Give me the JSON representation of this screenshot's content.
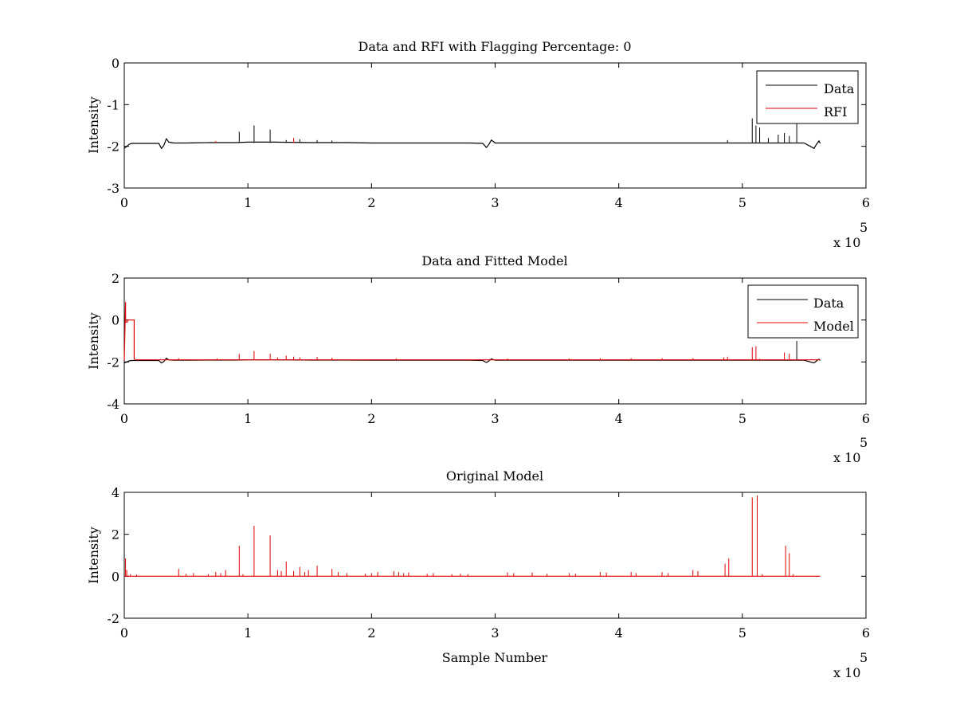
{
  "chart_data": [
    {
      "type": "line",
      "title": "Data and RFI with Flagging Percentage: 0",
      "xlabel": "",
      "ylabel": "Intensity",
      "xlim": [
        0,
        6
      ],
      "ylim": [
        -3,
        0
      ],
      "x_multiplier": "x 10",
      "x_multiplier_exp": "5",
      "xticks": [
        "0",
        "1",
        "2",
        "3",
        "4",
        "5",
        "6"
      ],
      "yticks": [
        "-3",
        "-2",
        "-1",
        "0"
      ],
      "legend_position": "top-right",
      "series": [
        {
          "name": "Data",
          "color": "#000000",
          "kind": "line",
          "x": [
            0,
            0.02,
            0.04,
            0.06,
            0.1,
            0.2,
            0.28,
            0.3,
            0.32,
            0.34,
            0.36,
            0.4,
            0.5,
            0.7,
            0.9,
            1.0,
            1.2,
            1.5,
            1.8,
            2.0,
            2.4,
            2.8,
            2.9,
            2.93,
            2.95,
            2.97,
            3.0,
            3.2,
            3.5,
            4.0,
            4.5,
            4.9,
            5.1,
            5.3,
            5.5,
            5.58,
            5.6,
            5.62,
            5.63
          ],
          "y": [
            -2.05,
            -2.0,
            -1.95,
            -1.93,
            -1.93,
            -1.93,
            -1.93,
            -2.05,
            -1.98,
            -1.82,
            -1.9,
            -1.92,
            -1.92,
            -1.91,
            -1.91,
            -1.9,
            -1.9,
            -1.91,
            -1.91,
            -1.92,
            -1.92,
            -1.92,
            -1.93,
            -2.03,
            -1.95,
            -1.85,
            -1.92,
            -1.92,
            -1.92,
            -1.92,
            -1.92,
            -1.92,
            -1.92,
            -1.92,
            -1.92,
            -2.05,
            -1.95,
            -1.87,
            -1.93
          ]
        },
        {
          "name": "Data spikes",
          "color": "#000000",
          "kind": "spikes",
          "baseline": -1.92,
          "x": [
            0.93,
            1.05,
            1.18,
            1.31,
            1.42,
            1.56,
            1.68,
            4.88,
            5.08,
            5.11,
            5.14,
            5.21,
            5.29,
            5.34,
            5.38,
            5.44
          ],
          "y": [
            -1.65,
            -1.5,
            -1.6,
            -1.85,
            -1.83,
            -1.85,
            -1.86,
            -1.85,
            -1.33,
            -1.5,
            -1.55,
            -1.8,
            -1.72,
            -1.68,
            -1.75,
            -1.4
          ]
        },
        {
          "name": "RFI",
          "color": "#e00000",
          "kind": "spikes",
          "baseline": -1.92,
          "x": [
            0.74,
            1.37
          ],
          "y": [
            -1.87,
            -1.8
          ]
        }
      ],
      "legend": [
        {
          "label": "Data",
          "color": "#000000"
        },
        {
          "label": "RFI",
          "color": "#e00000"
        }
      ]
    },
    {
      "type": "line",
      "title": "Data and Fitted Model",
      "xlabel": "",
      "ylabel": "Intensity",
      "xlim": [
        0,
        6
      ],
      "ylim": [
        -4,
        2
      ],
      "x_multiplier": "x 10",
      "x_multiplier_exp": "5",
      "xticks": [
        "0",
        "1",
        "2",
        "3",
        "4",
        "5",
        "6"
      ],
      "yticks": [
        "-4",
        "-2",
        "0",
        "2"
      ],
      "legend_position": "top-right",
      "series": [
        {
          "name": "Data",
          "color": "#000000",
          "kind": "line",
          "x": [
            0,
            0.02,
            0.04,
            0.06,
            0.1,
            0.2,
            0.28,
            0.3,
            0.32,
            0.34,
            0.36,
            0.4,
            0.5,
            0.7,
            0.9,
            1.0,
            1.2,
            1.5,
            1.8,
            2.0,
            2.4,
            2.8,
            2.9,
            2.93,
            2.95,
            2.97,
            3.0,
            3.2,
            3.5,
            4.0,
            4.5,
            4.9,
            5.1,
            5.3,
            5.5,
            5.58,
            5.6,
            5.62,
            5.63
          ],
          "y": [
            -2.05,
            -2.0,
            -1.95,
            -1.93,
            -1.93,
            -1.93,
            -1.93,
            -2.05,
            -1.98,
            -1.82,
            -1.9,
            -1.92,
            -1.92,
            -1.91,
            -1.91,
            -1.9,
            -1.9,
            -1.91,
            -1.91,
            -1.92,
            -1.92,
            -1.92,
            -1.93,
            -2.03,
            -1.95,
            -1.85,
            -1.92,
            -1.92,
            -1.92,
            -1.92,
            -1.92,
            -1.92,
            -1.92,
            -1.92,
            -1.92,
            -2.05,
            -1.95,
            -1.87,
            -1.93
          ]
        },
        {
          "name": "Data spike",
          "color": "#000000",
          "kind": "spikes",
          "baseline": -1.92,
          "x": [
            5.44
          ],
          "y": [
            -1.0
          ]
        },
        {
          "name": "Model",
          "color": "#e00000",
          "kind": "line",
          "x": [
            0,
            0.01,
            0.01,
            0.025,
            0.025,
            0.08,
            0.08,
            0.09,
            0.2,
            1.0,
            2.0,
            3.0,
            4.0,
            5.0,
            5.63
          ],
          "y": [
            -1.92,
            0.85,
            -0.1,
            -0.1,
            0.0,
            0.0,
            -1.85,
            -1.9,
            -1.9,
            -1.9,
            -1.9,
            -1.9,
            -1.9,
            -1.9,
            -1.9
          ]
        },
        {
          "name": "Model spikes",
          "color": "#e00000",
          "kind": "spikes",
          "baseline": -1.9,
          "x": [
            0.44,
            0.75,
            0.93,
            1.05,
            1.18,
            1.24,
            1.31,
            1.37,
            1.42,
            1.56,
            1.68,
            2.2,
            3.1,
            3.6,
            3.85,
            4.1,
            4.35,
            4.6,
            4.85,
            4.88,
            5.08,
            5.11,
            5.14,
            5.34,
            5.38
          ],
          "y": [
            -1.82,
            -1.83,
            -1.62,
            -1.48,
            -1.6,
            -1.78,
            -1.7,
            -1.75,
            -1.78,
            -1.76,
            -1.8,
            -1.84,
            -1.84,
            -1.84,
            -1.82,
            -1.82,
            -1.82,
            -1.82,
            -1.78,
            -1.75,
            -1.3,
            -1.25,
            -1.85,
            -1.55,
            -1.6
          ]
        }
      ],
      "legend": [
        {
          "label": "Data",
          "color": "#000000"
        },
        {
          "label": "Model",
          "color": "#e00000"
        }
      ]
    },
    {
      "type": "line",
      "title": "Original Model",
      "xlabel": "Sample Number",
      "ylabel": "Intensity",
      "xlim": [
        0,
        6
      ],
      "ylim": [
        -2,
        4
      ],
      "x_multiplier": "x 10",
      "x_multiplier_exp": "5",
      "xticks": [
        "0",
        "1",
        "2",
        "3",
        "4",
        "5",
        "6"
      ],
      "yticks": [
        "-2",
        "0",
        "2",
        "4"
      ],
      "legend_position": "none",
      "series": [
        {
          "name": "Original Model",
          "color": "#e00000",
          "kind": "spikes",
          "baseline": 0,
          "baseline_to": 5.63,
          "x": [
            0.01,
            0.02,
            0.05,
            0.1,
            0.44,
            0.5,
            0.56,
            0.68,
            0.74,
            0.78,
            0.82,
            0.93,
            0.96,
            1.05,
            1.18,
            1.24,
            1.27,
            1.31,
            1.37,
            1.42,
            1.46,
            1.49,
            1.56,
            1.68,
            1.73,
            1.8,
            1.95,
            2.0,
            2.05,
            2.18,
            2.22,
            2.26,
            2.3,
            2.45,
            2.5,
            2.65,
            2.72,
            2.78,
            3.1,
            3.15,
            3.3,
            3.42,
            3.6,
            3.65,
            3.85,
            3.9,
            4.1,
            4.14,
            4.35,
            4.4,
            4.6,
            4.64,
            4.86,
            4.89,
            5.08,
            5.12,
            5.16,
            5.35,
            5.38,
            5.41
          ],
          "y": [
            0.85,
            0.3,
            0.1,
            0.08,
            0.35,
            0.12,
            0.15,
            0.1,
            0.2,
            0.15,
            0.3,
            1.45,
            0.1,
            2.4,
            1.95,
            0.3,
            0.25,
            0.7,
            0.25,
            0.45,
            0.2,
            0.3,
            0.5,
            0.35,
            0.2,
            0.15,
            0.12,
            0.15,
            0.2,
            0.25,
            0.2,
            0.15,
            0.18,
            0.12,
            0.15,
            0.1,
            0.12,
            0.1,
            0.18,
            0.15,
            0.18,
            0.12,
            0.15,
            0.12,
            0.2,
            0.18,
            0.2,
            0.15,
            0.2,
            0.15,
            0.3,
            0.25,
            0.6,
            0.85,
            3.75,
            3.85,
            0.1,
            1.45,
            1.1,
            0.1
          ]
        }
      ],
      "legend": []
    }
  ]
}
